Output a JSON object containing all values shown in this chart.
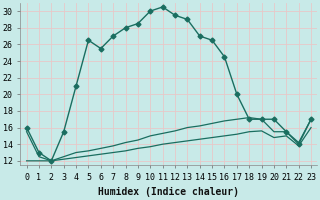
{
  "xlabel": "Humidex (Indice chaleur)",
  "background_color": "#c8eae8",
  "grid_color": "#b0d8d4",
  "line_color": "#1a6e60",
  "x_values": [
    0,
    1,
    2,
    3,
    4,
    5,
    6,
    7,
    8,
    9,
    10,
    11,
    12,
    13,
    14,
    15,
    16,
    17,
    18,
    19,
    20,
    21,
    22,
    23
  ],
  "line1": [
    16,
    13,
    12,
    15.5,
    21,
    26.5,
    25.5,
    27,
    28.0,
    28.5,
    30,
    30.5,
    29.5,
    29,
    27,
    26.5,
    24.5,
    20,
    17,
    17,
    17,
    15.5,
    14,
    17
  ],
  "line2": [
    15.5,
    12.5,
    12.0,
    12.5,
    13.0,
    13.2,
    13.5,
    13.8,
    14.2,
    14.5,
    15.0,
    15.3,
    15.6,
    16.0,
    16.2,
    16.5,
    16.8,
    17.0,
    17.2,
    17.0,
    15.5,
    15.5,
    14.2,
    17.0
  ],
  "line3": [
    12.0,
    12.0,
    12.0,
    12.2,
    12.4,
    12.6,
    12.8,
    13.0,
    13.2,
    13.5,
    13.7,
    14.0,
    14.2,
    14.4,
    14.6,
    14.8,
    15.0,
    15.2,
    15.5,
    15.6,
    14.8,
    15.0,
    13.8,
    16.0
  ],
  "ylim": [
    11.5,
    31
  ],
  "xlim": [
    -0.5,
    23.5
  ],
  "yticks": [
    12,
    14,
    16,
    18,
    20,
    22,
    24,
    26,
    28,
    30
  ],
  "xticks": [
    0,
    1,
    2,
    3,
    4,
    5,
    6,
    7,
    8,
    9,
    10,
    11,
    12,
    13,
    14,
    15,
    16,
    17,
    18,
    19,
    20,
    21,
    22,
    23
  ],
  "xlabel_fontsize": 7,
  "tick_fontsize": 6
}
